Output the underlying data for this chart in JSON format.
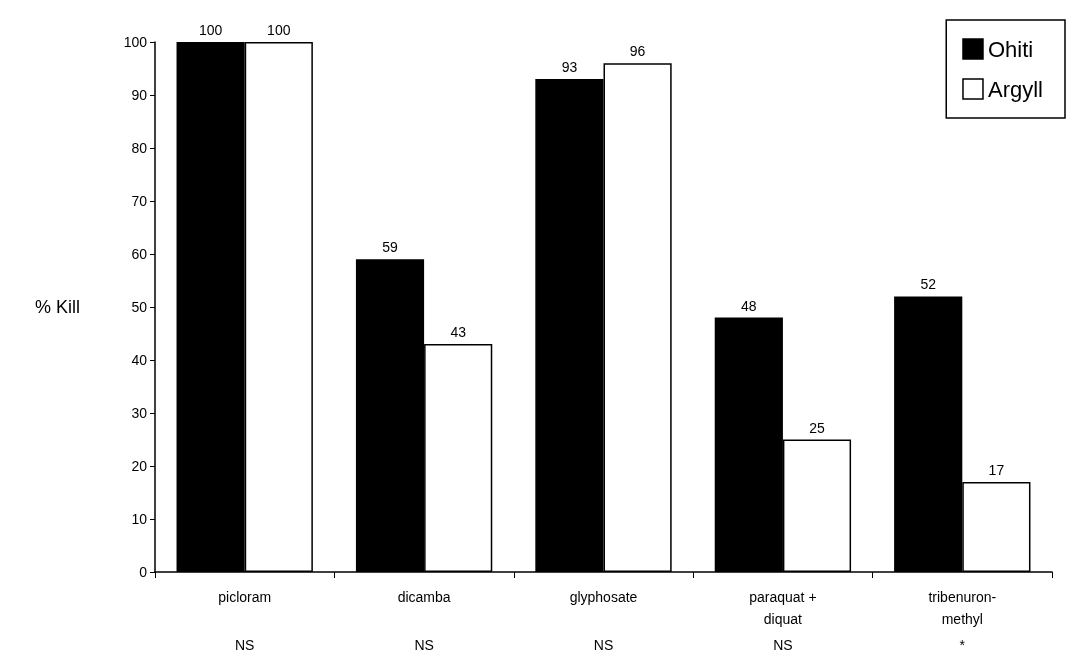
{
  "chart_data": {
    "type": "bar",
    "ylabel": "% Kill",
    "categories": [
      "picloram",
      "dicamba",
      "glyphosate",
      "paraquat +\ndiquat",
      "tribenuron-\nmethyl"
    ],
    "series": [
      {
        "name": "Ohiti",
        "color": "#000000",
        "values": [
          100,
          59,
          93,
          48,
          52
        ]
      },
      {
        "name": "Argyll",
        "color": "#ffffff",
        "values": [
          100,
          43,
          96,
          25,
          17
        ]
      }
    ],
    "ylim": [
      0,
      100
    ],
    "yticks": [
      0,
      10,
      20,
      30,
      40,
      50,
      60,
      70,
      80,
      90,
      100
    ],
    "data_labels": true,
    "grid": false,
    "legend": "top right",
    "annotations": [
      "NS",
      "NS",
      "NS",
      "NS",
      "*"
    ]
  }
}
